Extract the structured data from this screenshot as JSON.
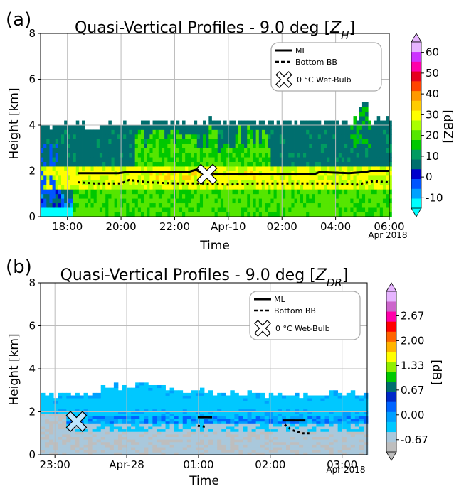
{
  "colors": {
    "levels_zh": [
      "#00FFFF",
      "#00A2FF",
      "#0055FF",
      "#0000CC",
      "#006E6E",
      "#009B61",
      "#00C800",
      "#55E600",
      "#AAFF00",
      "#FFFF00",
      "#FFCC00",
      "#FF9900",
      "#FF4400",
      "#E6001E",
      "#FF00AA",
      "#CC33FF",
      "#E6B4FF"
    ],
    "levels_zdr": [
      "#BEBEBE",
      "#A9C8DC",
      "#00C8FF",
      "#00A0FF",
      "#0064FF",
      "#0028C8",
      "#006E6E",
      "#00C800",
      "#90EE00",
      "#FFFF00",
      "#FFB400",
      "#FF6400",
      "#FF0000",
      "#FF00AA",
      "#CC66CC",
      "#E6B4FF"
    ],
    "ml_line": "#000000",
    "marker_fill": "#ffffff",
    "marker_fill_b": "#BEE6FF"
  },
  "chart_data": [
    {
      "type": "heatmap",
      "panel_label": "(a)",
      "title_prefix": "Quasi-Vertical Profiles - 9.0 deg [",
      "title_var": "Z",
      "title_sub": "H",
      "title_suffix": "]",
      "xlabel": "Time",
      "ylabel": "Height [km]",
      "x_start_hour": 17.0,
      "x_end_hour": 30.0,
      "xticks": [
        18,
        20,
        22,
        24,
        26,
        28,
        30
      ],
      "xtick_labels": [
        "18:00",
        "20:00",
        "22:00",
        "Apr-10",
        "02:00",
        "04:00",
        "06:00"
      ],
      "date_note": "Apr 2018",
      "ylim": [
        0,
        8
      ],
      "yticks": [
        0,
        2,
        4,
        6,
        8
      ],
      "grid": true,
      "colorbar": {
        "label": "[dBZ]",
        "min": -15,
        "max": 65,
        "tick_values": [
          -10,
          0,
          10,
          20,
          30,
          40,
          50,
          60
        ],
        "tick_labels": [
          "-10",
          "0",
          "10",
          "20",
          "30",
          "40",
          "50",
          "60"
        ],
        "extend": "both"
      },
      "legend": {
        "position": "top-right",
        "entries": [
          {
            "label": "ML",
            "style": "solid"
          },
          {
            "label": "Bottom BB",
            "style": "dashed"
          },
          {
            "label": "0 °C Wet-Bulb",
            "style": "marker"
          }
        ]
      },
      "echo_top_km": [
        [
          17.0,
          3.85
        ],
        [
          17.5,
          3.9
        ],
        [
          18.0,
          3.95
        ],
        [
          19.0,
          3.9
        ],
        [
          20.0,
          3.95
        ],
        [
          21.0,
          4.0
        ],
        [
          22.0,
          4.0
        ],
        [
          23.0,
          4.05
        ],
        [
          24.0,
          4.1
        ],
        [
          25.0,
          4.05
        ],
        [
          26.0,
          4.1
        ],
        [
          27.0,
          4.0
        ],
        [
          28.0,
          4.05
        ],
        [
          29.0,
          4.1
        ],
        [
          30.0,
          4.1
        ]
      ],
      "bright_band_km": [
        1.2,
        2.0
      ],
      "ml_top_km": [
        [
          18.4,
          1.9
        ],
        [
          19.9,
          1.9
        ],
        [
          20.2,
          1.95
        ],
        [
          22.5,
          1.95
        ],
        [
          22.8,
          2.05
        ],
        [
          23.0,
          1.9
        ],
        [
          24.0,
          1.85
        ],
        [
          26.0,
          1.85
        ],
        [
          27.2,
          1.85
        ],
        [
          27.4,
          1.95
        ],
        [
          28.5,
          1.9
        ],
        [
          29.1,
          1.95
        ],
        [
          29.3,
          2.0
        ],
        [
          30.0,
          2.0
        ]
      ],
      "bottom_bb_km": [
        [
          18.4,
          1.5
        ],
        [
          19.0,
          1.45
        ],
        [
          20.0,
          1.45
        ],
        [
          20.3,
          1.6
        ],
        [
          21.0,
          1.5
        ],
        [
          22.0,
          1.45
        ],
        [
          23.0,
          1.45
        ],
        [
          24.0,
          1.4
        ],
        [
          25.0,
          1.45
        ],
        [
          26.0,
          1.45
        ],
        [
          27.0,
          1.45
        ],
        [
          28.0,
          1.45
        ],
        [
          28.8,
          1.4
        ],
        [
          29.4,
          1.55
        ],
        [
          30.0,
          1.5
        ]
      ],
      "wetbulb_marker": {
        "time_hour": 23.2,
        "height_km": 1.85
      }
    },
    {
      "type": "heatmap",
      "panel_label": "(b)",
      "title_prefix": "Quasi-Vertical Profiles - 9.0 deg [",
      "title_var": "Z",
      "title_sub": "DR",
      "title_suffix": "]",
      "xlabel": "Time",
      "ylabel": "Height [km]",
      "x_start_hour": 22.8,
      "x_end_hour": 27.35,
      "xticks": [
        23,
        24,
        25,
        26,
        27
      ],
      "xtick_labels": [
        "23:00",
        "Apr-28",
        "01:00",
        "02:00",
        "03:00"
      ],
      "date_note": "Apr 2018",
      "ylim": [
        0,
        8
      ],
      "yticks": [
        0,
        2,
        4,
        6,
        8
      ],
      "grid": true,
      "colorbar": {
        "label": "[dB]",
        "min": -1.0,
        "max": 3.33,
        "tick_values": [
          -0.67,
          0.0,
          0.67,
          1.33,
          2.0,
          2.67
        ],
        "tick_labels": [
          "-0.67",
          "0.00",
          "0.67",
          "1.33",
          "2.00",
          "2.67"
        ],
        "extend": "both"
      },
      "legend": {
        "position": "top-right",
        "entries": [
          {
            "label": "ML",
            "style": "solid"
          },
          {
            "label": "Bottom BB",
            "style": "dashed"
          },
          {
            "label": "0 °C Wet-Bulb",
            "style": "marker"
          }
        ]
      },
      "echo_top_km": [
        [
          22.8,
          2.7
        ],
        [
          23.3,
          2.8
        ],
        [
          23.8,
          3.1
        ],
        [
          24.2,
          3.2
        ],
        [
          24.8,
          2.9
        ],
        [
          25.3,
          2.85
        ],
        [
          25.8,
          2.8
        ],
        [
          26.3,
          2.7
        ],
        [
          26.8,
          2.8
        ],
        [
          27.35,
          2.75
        ]
      ],
      "ml_segments_km": [
        [
          [
            24.99,
            1.75
          ],
          [
            25.19,
            1.75
          ]
        ],
        [
          [
            26.18,
            1.6
          ],
          [
            26.49,
            1.6
          ]
        ]
      ],
      "bottom_bb_segments_km": [
        [
          [
            24.99,
            1.35
          ],
          [
            25.12,
            1.3
          ]
        ],
        [
          [
            26.2,
            1.4
          ],
          [
            26.3,
            1.15
          ],
          [
            26.45,
            1.0
          ],
          [
            26.55,
            1.0
          ]
        ]
      ],
      "wetbulb_marker": {
        "time_hour": 23.3,
        "height_km": 1.55
      }
    }
  ]
}
